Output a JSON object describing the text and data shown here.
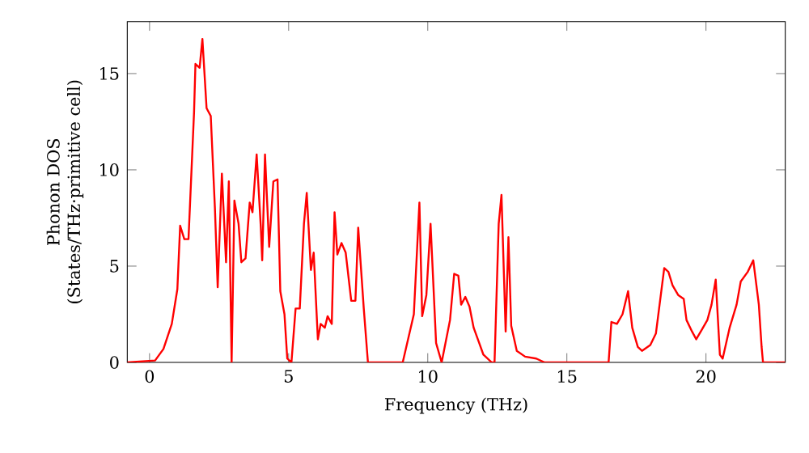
{
  "chart_data": {
    "type": "line",
    "xlabel": "Frequency (THz)",
    "ylabel": "Phonon DOS\n(States/THz·primitive cell)",
    "xlim": [
      -0.8,
      22.85
    ],
    "ylim": [
      0,
      17.7
    ],
    "xticks": [
      0,
      5,
      10,
      15,
      20
    ],
    "yticks": [
      0,
      5,
      10,
      15
    ],
    "marker": "none",
    "line_style": "solid",
    "series": [
      {
        "color": "#ff0000",
        "x": [
          -0.8,
          0.2,
          0.5,
          0.8,
          1.0,
          1.1,
          1.25,
          1.4,
          1.6,
          1.65,
          1.8,
          1.9,
          2.05,
          2.2,
          2.35,
          2.45,
          2.6,
          2.75,
          2.85,
          2.95,
          3.05,
          3.2,
          3.3,
          3.45,
          3.6,
          3.7,
          3.85,
          4.0,
          4.05,
          4.15,
          4.3,
          4.45,
          4.6,
          4.7,
          4.85,
          4.95,
          5.1,
          5.25,
          5.4,
          5.55,
          5.65,
          5.8,
          5.9,
          6.05,
          6.15,
          6.3,
          6.4,
          6.55,
          6.65,
          6.75,
          6.9,
          7.05,
          7.25,
          7.4,
          7.5,
          7.7,
          7.85,
          8.0,
          9.1,
          9.5,
          9.7,
          9.8,
          9.95,
          10.1,
          10.3,
          10.5,
          10.8,
          10.95,
          11.1,
          11.2,
          11.35,
          11.5,
          11.65,
          11.85,
          12.0,
          12.3,
          12.4,
          12.55,
          12.65,
          12.8,
          12.9,
          13.0,
          13.2,
          13.5,
          13.9,
          14.2,
          16.5,
          16.6,
          16.8,
          17.0,
          17.2,
          17.35,
          17.55,
          17.7,
          18.0,
          18.2,
          18.5,
          18.65,
          18.8,
          19.0,
          19.2,
          19.3,
          19.5,
          19.65,
          19.85,
          20.05,
          20.2,
          20.35,
          20.5,
          20.6,
          20.85,
          21.1,
          21.25,
          21.5,
          21.7,
          21.9,
          22.0,
          22.05,
          22.85
        ],
        "values": [
          0,
          0.1,
          0.7,
          2,
          3.8,
          7.1,
          6.4,
          6.4,
          13,
          15.5,
          15.3,
          16.8,
          13.2,
          12.8,
          8,
          3.9,
          9.8,
          5.2,
          9.4,
          0,
          8.4,
          7.2,
          5.2,
          5.4,
          8.3,
          7.8,
          10.8,
          7.0,
          5.3,
          10.8,
          6.0,
          9.4,
          9.5,
          3.7,
          2.5,
          0.2,
          0,
          2.8,
          2.8,
          7.2,
          8.8,
          4.8,
          5.7,
          1.2,
          2.0,
          1.8,
          2.4,
          2.0,
          7.8,
          5.6,
          6.2,
          5.7,
          3.2,
          3.2,
          7.0,
          2.8,
          0,
          0,
          0,
          2.5,
          8.3,
          2.4,
          3.5,
          7.2,
          1.0,
          0,
          2.2,
          4.6,
          4.5,
          3.0,
          3.4,
          2.9,
          1.8,
          1.0,
          0.4,
          0,
          0,
          7.2,
          8.7,
          1.6,
          6.5,
          1.9,
          0.6,
          0.3,
          0.2,
          0,
          0,
          2.1,
          2.0,
          2.5,
          3.7,
          1.8,
          0.8,
          0.6,
          0.9,
          1.5,
          4.9,
          4.7,
          4.0,
          3.5,
          3.3,
          2.2,
          1.6,
          1.2,
          1.7,
          2.2,
          3.0,
          4.3,
          0.4,
          0.2,
          1.8,
          3.0,
          4.2,
          4.7,
          5.3,
          3.0,
          0.8,
          0,
          0
        ]
      }
    ]
  }
}
